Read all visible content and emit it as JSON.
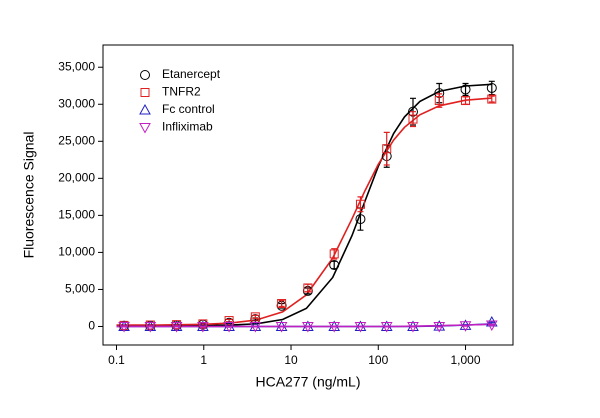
{
  "chart_data": {
    "type": "scatter",
    "x_label": "HCA277 (ng/mL)",
    "y_label": "Fluorescence Signal",
    "x_log": true,
    "xlim": [
      0.07,
      3500
    ],
    "xticks": [
      0.1,
      1,
      10,
      100,
      {
        "value": 1000,
        "label": "1,000"
      }
    ],
    "ylim": [
      -2500,
      38000
    ],
    "yticks": [
      0,
      {
        "value": 5000,
        "label": "5,000"
      },
      {
        "value": 10000,
        "label": "10,000"
      },
      {
        "value": 15000,
        "label": "15,000"
      },
      {
        "value": 20000,
        "label": "20,000"
      },
      {
        "value": 25000,
        "label": "25,000"
      },
      {
        "value": 30000,
        "label": "30,000"
      },
      {
        "value": 35000,
        "label": "35,000"
      }
    ],
    "legend": "upper left",
    "x": [
      0.122,
      0.244,
      0.488,
      0.977,
      1.95,
      3.9,
      7.8,
      15.6,
      31.25,
      62.5,
      125,
      250,
      500,
      1000,
      2000
    ],
    "fit_x": [
      0.1,
      0.3,
      1,
      2,
      4,
      8,
      15,
      30,
      50,
      70,
      100,
      150,
      200,
      300,
      500,
      1000,
      2000
    ],
    "series": [
      {
        "name": "Etanercept",
        "color": "#000000",
        "marker": "circle",
        "values": [
          100,
          100,
          150,
          250,
          500,
          1000,
          2800,
          4800,
          8300,
          14500,
          23000,
          29000,
          31500,
          32000,
          32200
        ],
        "errors": [
          50,
          50,
          50,
          80,
          100,
          150,
          300,
          400,
          500,
          1500,
          1500,
          1800,
          1300,
          800,
          900
        ],
        "fit_values": [
          100,
          100,
          125,
          182,
          362,
          938,
          2436,
          6614,
          12270,
          16860,
          21630,
          26050,
          28290,
          30380,
          31730,
          32470,
          32700
        ]
      },
      {
        "name": "TNFR2",
        "color": "#e02020",
        "marker": "square",
        "values": [
          150,
          200,
          250,
          350,
          800,
          1300,
          3100,
          5200,
          9800,
          16500,
          24000,
          28000,
          30500,
          30500,
          30700
        ],
        "errors": [
          50,
          50,
          50,
          80,
          150,
          200,
          400,
          500,
          700,
          1000,
          2200,
          1000,
          900,
          500,
          400
        ],
        "fit_values": [
          200,
          205,
          292,
          451,
          875,
          1970,
          4264,
          9232,
          14540,
          18270,
          21890,
          25160,
          26890,
          28580,
          29790,
          30550,
          30830
        ]
      },
      {
        "name": "Fc control",
        "color": "#2020c0",
        "marker": "triangle-up",
        "values": [
          0,
          0,
          0,
          0,
          0,
          0,
          0,
          0,
          0,
          0,
          0,
          0,
          50,
          150,
          600
        ],
        "errors": [
          50,
          50,
          50,
          50,
          50,
          50,
          50,
          50,
          50,
          50,
          50,
          50,
          50,
          50,
          100
        ],
        "fit_values": [
          0,
          0,
          0,
          0,
          0,
          0,
          0,
          0,
          0,
          0,
          0,
          0,
          0,
          20,
          80,
          180,
          350
        ]
      },
      {
        "name": "Infliximab",
        "color": "#c020c0",
        "marker": "triangle-down",
        "values": [
          0,
          0,
          0,
          0,
          0,
          0,
          0,
          0,
          0,
          0,
          0,
          0,
          0,
          100,
          200
        ],
        "errors": [
          50,
          50,
          50,
          50,
          50,
          50,
          50,
          50,
          50,
          50,
          50,
          50,
          50,
          50,
          80
        ],
        "fit_values": [
          0,
          0,
          0,
          0,
          0,
          0,
          0,
          0,
          0,
          0,
          0,
          0,
          20,
          50,
          100,
          200,
          300
        ]
      }
    ]
  }
}
